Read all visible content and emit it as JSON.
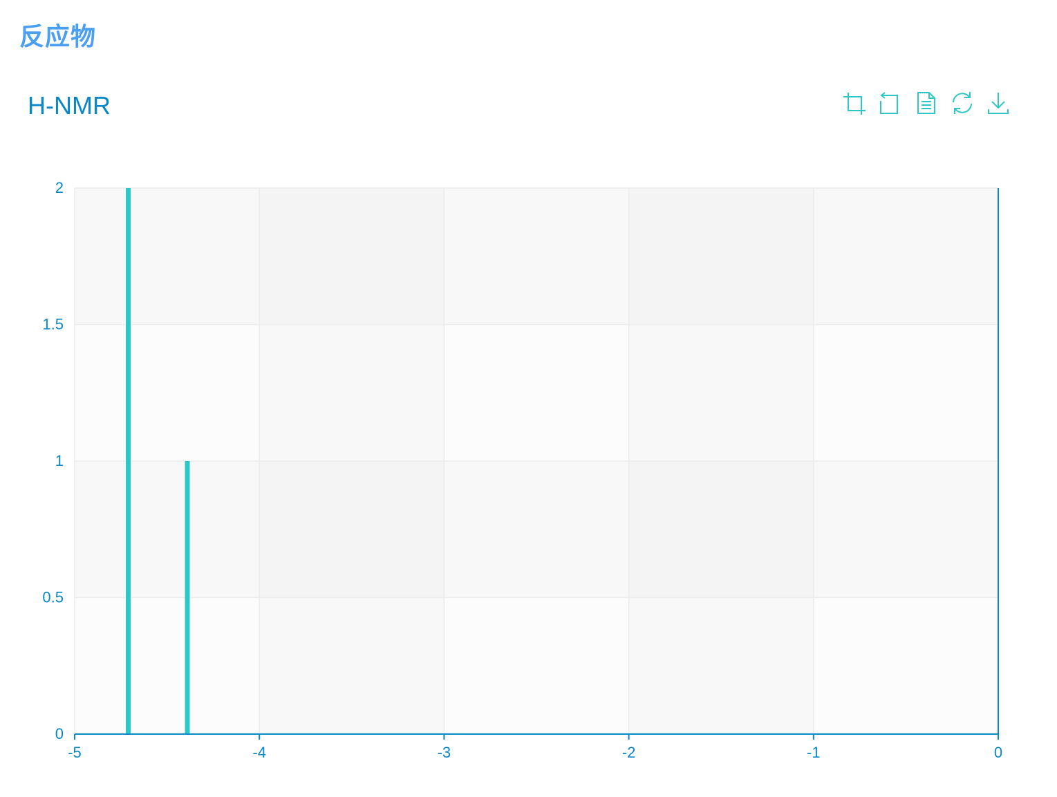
{
  "page": {
    "heading": "反应物"
  },
  "toolbox": {
    "items": [
      {
        "icon": "zoom-icon"
      },
      {
        "icon": "zoom-reset-icon"
      },
      {
        "icon": "data-view-icon"
      },
      {
        "icon": "restore-icon"
      },
      {
        "icon": "download-icon"
      }
    ],
    "color": "#2ec7c9"
  },
  "chart_data": {
    "type": "bar",
    "title": "H-NMR",
    "xlabel": "",
    "ylabel": "",
    "xlim": [
      -5,
      0
    ],
    "ylim": [
      0,
      2
    ],
    "x_ticks": [
      "-5",
      "-4",
      "-3",
      "-2",
      "-1",
      "0"
    ],
    "y_ticks": [
      "0",
      "0.5",
      "1",
      "1.5",
      "2"
    ],
    "grid": true,
    "split_area": true,
    "bar_color": "#2ec7c9",
    "axis_color": "#0a87c9",
    "series": [
      {
        "points": [
          {
            "x": -4.71,
            "y": 2
          },
          {
            "x": -4.39,
            "y": 1
          }
        ]
      }
    ]
  }
}
